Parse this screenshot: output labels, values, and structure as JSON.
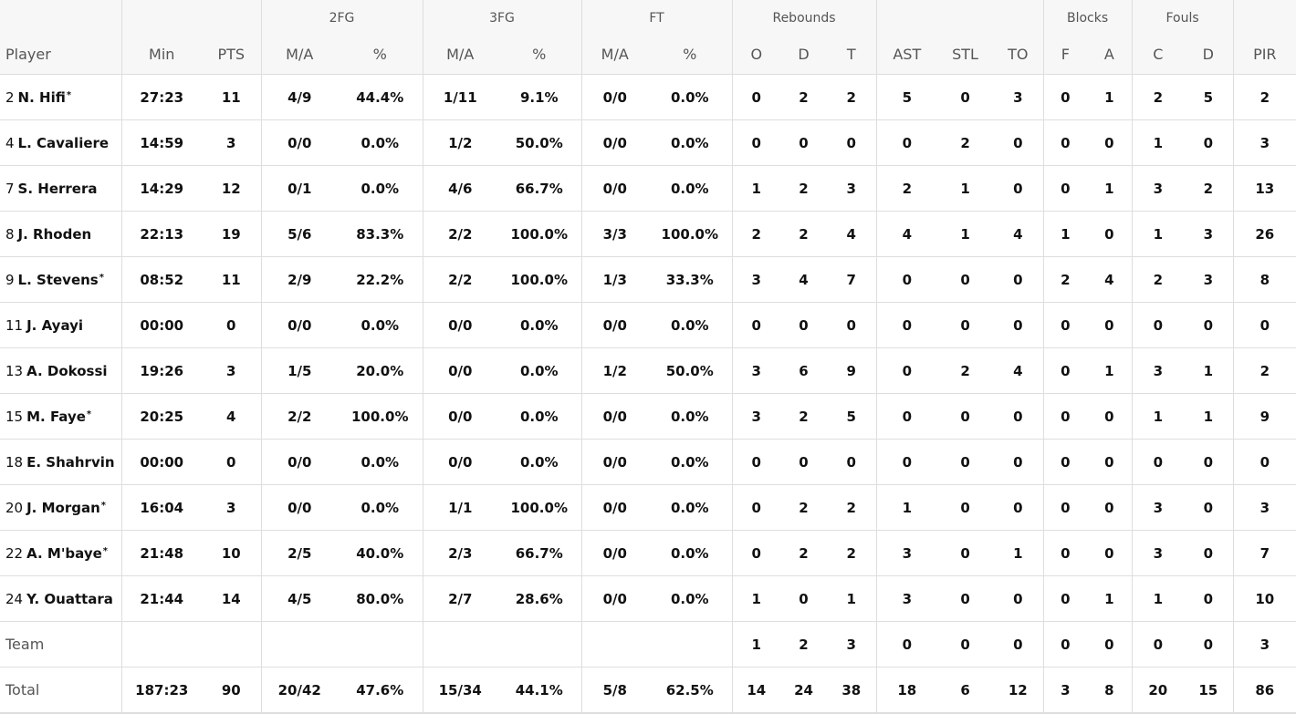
{
  "header": {
    "groups": {
      "fg2": "2FG",
      "fg3": "3FG",
      "ft": "FT",
      "rebounds": "Rebounds",
      "blocks": "Blocks",
      "fouls": "Fouls"
    },
    "columns": {
      "player": "Player",
      "min": "Min",
      "pts": "PTS",
      "fg2_ma": "M/A",
      "fg2_pct": "%",
      "fg3_ma": "M/A",
      "fg3_pct": "%",
      "ft_ma": "M/A",
      "ft_pct": "%",
      "reb_o": "O",
      "reb_d": "D",
      "reb_t": "T",
      "ast": "AST",
      "stl": "STL",
      "to": "TO",
      "blk_f": "F",
      "blk_a": "A",
      "foul_c": "C",
      "foul_d": "D",
      "pir": "PIR"
    }
  },
  "players": [
    {
      "num": "2",
      "name": "N. Hifi",
      "starter": "*",
      "min": "27:23",
      "pts": "11",
      "fg2_ma": "4/9",
      "fg2_pct": "44.4%",
      "fg3_ma": "1/11",
      "fg3_pct": "9.1%",
      "ft_ma": "0/0",
      "ft_pct": "0.0%",
      "reb_o": "0",
      "reb_d": "2",
      "reb_t": "2",
      "ast": "5",
      "stl": "0",
      "to": "3",
      "blk_f": "0",
      "blk_a": "1",
      "foul_c": "2",
      "foul_d": "5",
      "pir": "2"
    },
    {
      "num": "4",
      "name": "L. Cavaliere",
      "starter": "",
      "min": "14:59",
      "pts": "3",
      "fg2_ma": "0/0",
      "fg2_pct": "0.0%",
      "fg3_ma": "1/2",
      "fg3_pct": "50.0%",
      "ft_ma": "0/0",
      "ft_pct": "0.0%",
      "reb_o": "0",
      "reb_d": "0",
      "reb_t": "0",
      "ast": "0",
      "stl": "2",
      "to": "0",
      "blk_f": "0",
      "blk_a": "0",
      "foul_c": "1",
      "foul_d": "0",
      "pir": "3"
    },
    {
      "num": "7",
      "name": "S. Herrera",
      "starter": "",
      "min": "14:29",
      "pts": "12",
      "fg2_ma": "0/1",
      "fg2_pct": "0.0%",
      "fg3_ma": "4/6",
      "fg3_pct": "66.7%",
      "ft_ma": "0/0",
      "ft_pct": "0.0%",
      "reb_o": "1",
      "reb_d": "2",
      "reb_t": "3",
      "ast": "2",
      "stl": "1",
      "to": "0",
      "blk_f": "0",
      "blk_a": "1",
      "foul_c": "3",
      "foul_d": "2",
      "pir": "13"
    },
    {
      "num": "8",
      "name": "J. Rhoden",
      "starter": "",
      "min": "22:13",
      "pts": "19",
      "fg2_ma": "5/6",
      "fg2_pct": "83.3%",
      "fg3_ma": "2/2",
      "fg3_pct": "100.0%",
      "ft_ma": "3/3",
      "ft_pct": "100.0%",
      "reb_o": "2",
      "reb_d": "2",
      "reb_t": "4",
      "ast": "4",
      "stl": "1",
      "to": "4",
      "blk_f": "1",
      "blk_a": "0",
      "foul_c": "1",
      "foul_d": "3",
      "pir": "26"
    },
    {
      "num": "9",
      "name": "L. Stevens",
      "starter": "*",
      "min": "08:52",
      "pts": "11",
      "fg2_ma": "2/9",
      "fg2_pct": "22.2%",
      "fg3_ma": "2/2",
      "fg3_pct": "100.0%",
      "ft_ma": "1/3",
      "ft_pct": "33.3%",
      "reb_o": "3",
      "reb_d": "4",
      "reb_t": "7",
      "ast": "0",
      "stl": "0",
      "to": "0",
      "blk_f": "2",
      "blk_a": "4",
      "foul_c": "2",
      "foul_d": "3",
      "pir": "8"
    },
    {
      "num": "11",
      "name": "J. Ayayi",
      "starter": "",
      "min": "00:00",
      "pts": "0",
      "fg2_ma": "0/0",
      "fg2_pct": "0.0%",
      "fg3_ma": "0/0",
      "fg3_pct": "0.0%",
      "ft_ma": "0/0",
      "ft_pct": "0.0%",
      "reb_o": "0",
      "reb_d": "0",
      "reb_t": "0",
      "ast": "0",
      "stl": "0",
      "to": "0",
      "blk_f": "0",
      "blk_a": "0",
      "foul_c": "0",
      "foul_d": "0",
      "pir": "0"
    },
    {
      "num": "13",
      "name": "A. Dokossi",
      "starter": "",
      "min": "19:26",
      "pts": "3",
      "fg2_ma": "1/5",
      "fg2_pct": "20.0%",
      "fg3_ma": "0/0",
      "fg3_pct": "0.0%",
      "ft_ma": "1/2",
      "ft_pct": "50.0%",
      "reb_o": "3",
      "reb_d": "6",
      "reb_t": "9",
      "ast": "0",
      "stl": "2",
      "to": "4",
      "blk_f": "0",
      "blk_a": "1",
      "foul_c": "3",
      "foul_d": "1",
      "pir": "2"
    },
    {
      "num": "15",
      "name": "M. Faye",
      "starter": "*",
      "min": "20:25",
      "pts": "4",
      "fg2_ma": "2/2",
      "fg2_pct": "100.0%",
      "fg3_ma": "0/0",
      "fg3_pct": "0.0%",
      "ft_ma": "0/0",
      "ft_pct": "0.0%",
      "reb_o": "3",
      "reb_d": "2",
      "reb_t": "5",
      "ast": "0",
      "stl": "0",
      "to": "0",
      "blk_f": "0",
      "blk_a": "0",
      "foul_c": "1",
      "foul_d": "1",
      "pir": "9"
    },
    {
      "num": "18",
      "name": "E. Shahrvin",
      "starter": "",
      "min": "00:00",
      "pts": "0",
      "fg2_ma": "0/0",
      "fg2_pct": "0.0%",
      "fg3_ma": "0/0",
      "fg3_pct": "0.0%",
      "ft_ma": "0/0",
      "ft_pct": "0.0%",
      "reb_o": "0",
      "reb_d": "0",
      "reb_t": "0",
      "ast": "0",
      "stl": "0",
      "to": "0",
      "blk_f": "0",
      "blk_a": "0",
      "foul_c": "0",
      "foul_d": "0",
      "pir": "0"
    },
    {
      "num": "20",
      "name": "J. Morgan",
      "starter": "*",
      "min": "16:04",
      "pts": "3",
      "fg2_ma": "0/0",
      "fg2_pct": "0.0%",
      "fg3_ma": "1/1",
      "fg3_pct": "100.0%",
      "ft_ma": "0/0",
      "ft_pct": "0.0%",
      "reb_o": "0",
      "reb_d": "2",
      "reb_t": "2",
      "ast": "1",
      "stl": "0",
      "to": "0",
      "blk_f": "0",
      "blk_a": "0",
      "foul_c": "3",
      "foul_d": "0",
      "pir": "3"
    },
    {
      "num": "22",
      "name": "A. M'baye",
      "starter": "*",
      "min": "21:48",
      "pts": "10",
      "fg2_ma": "2/5",
      "fg2_pct": "40.0%",
      "fg3_ma": "2/3",
      "fg3_pct": "66.7%",
      "ft_ma": "0/0",
      "ft_pct": "0.0%",
      "reb_o": "0",
      "reb_d": "2",
      "reb_t": "2",
      "ast": "3",
      "stl": "0",
      "to": "1",
      "blk_f": "0",
      "blk_a": "0",
      "foul_c": "3",
      "foul_d": "0",
      "pir": "7"
    },
    {
      "num": "24",
      "name": "Y. Ouattara",
      "starter": "",
      "min": "21:44",
      "pts": "14",
      "fg2_ma": "4/5",
      "fg2_pct": "80.0%",
      "fg3_ma": "2/7",
      "fg3_pct": "28.6%",
      "ft_ma": "0/0",
      "ft_pct": "0.0%",
      "reb_o": "1",
      "reb_d": "0",
      "reb_t": "1",
      "ast": "3",
      "stl": "0",
      "to": "0",
      "blk_f": "0",
      "blk_a": "1",
      "foul_c": "1",
      "foul_d": "0",
      "pir": "10"
    }
  ],
  "team": {
    "label": "Team",
    "min": "",
    "pts": "",
    "fg2_ma": "",
    "fg2_pct": "",
    "fg3_ma": "",
    "fg3_pct": "",
    "ft_ma": "",
    "ft_pct": "",
    "reb_o": "1",
    "reb_d": "2",
    "reb_t": "3",
    "ast": "0",
    "stl": "0",
    "to": "0",
    "blk_f": "0",
    "blk_a": "0",
    "foul_c": "0",
    "foul_d": "0",
    "pir": "3"
  },
  "total": {
    "label": "Total",
    "min": "187:23",
    "pts": "90",
    "fg2_ma": "20/42",
    "fg2_pct": "47.6%",
    "fg3_ma": "15/34",
    "fg3_pct": "44.1%",
    "ft_ma": "5/8",
    "ft_pct": "62.5%",
    "reb_o": "14",
    "reb_d": "24",
    "reb_t": "38",
    "ast": "18",
    "stl": "6",
    "to": "12",
    "blk_f": "3",
    "blk_a": "8",
    "foul_c": "20",
    "foul_d": "15",
    "pir": "86"
  }
}
